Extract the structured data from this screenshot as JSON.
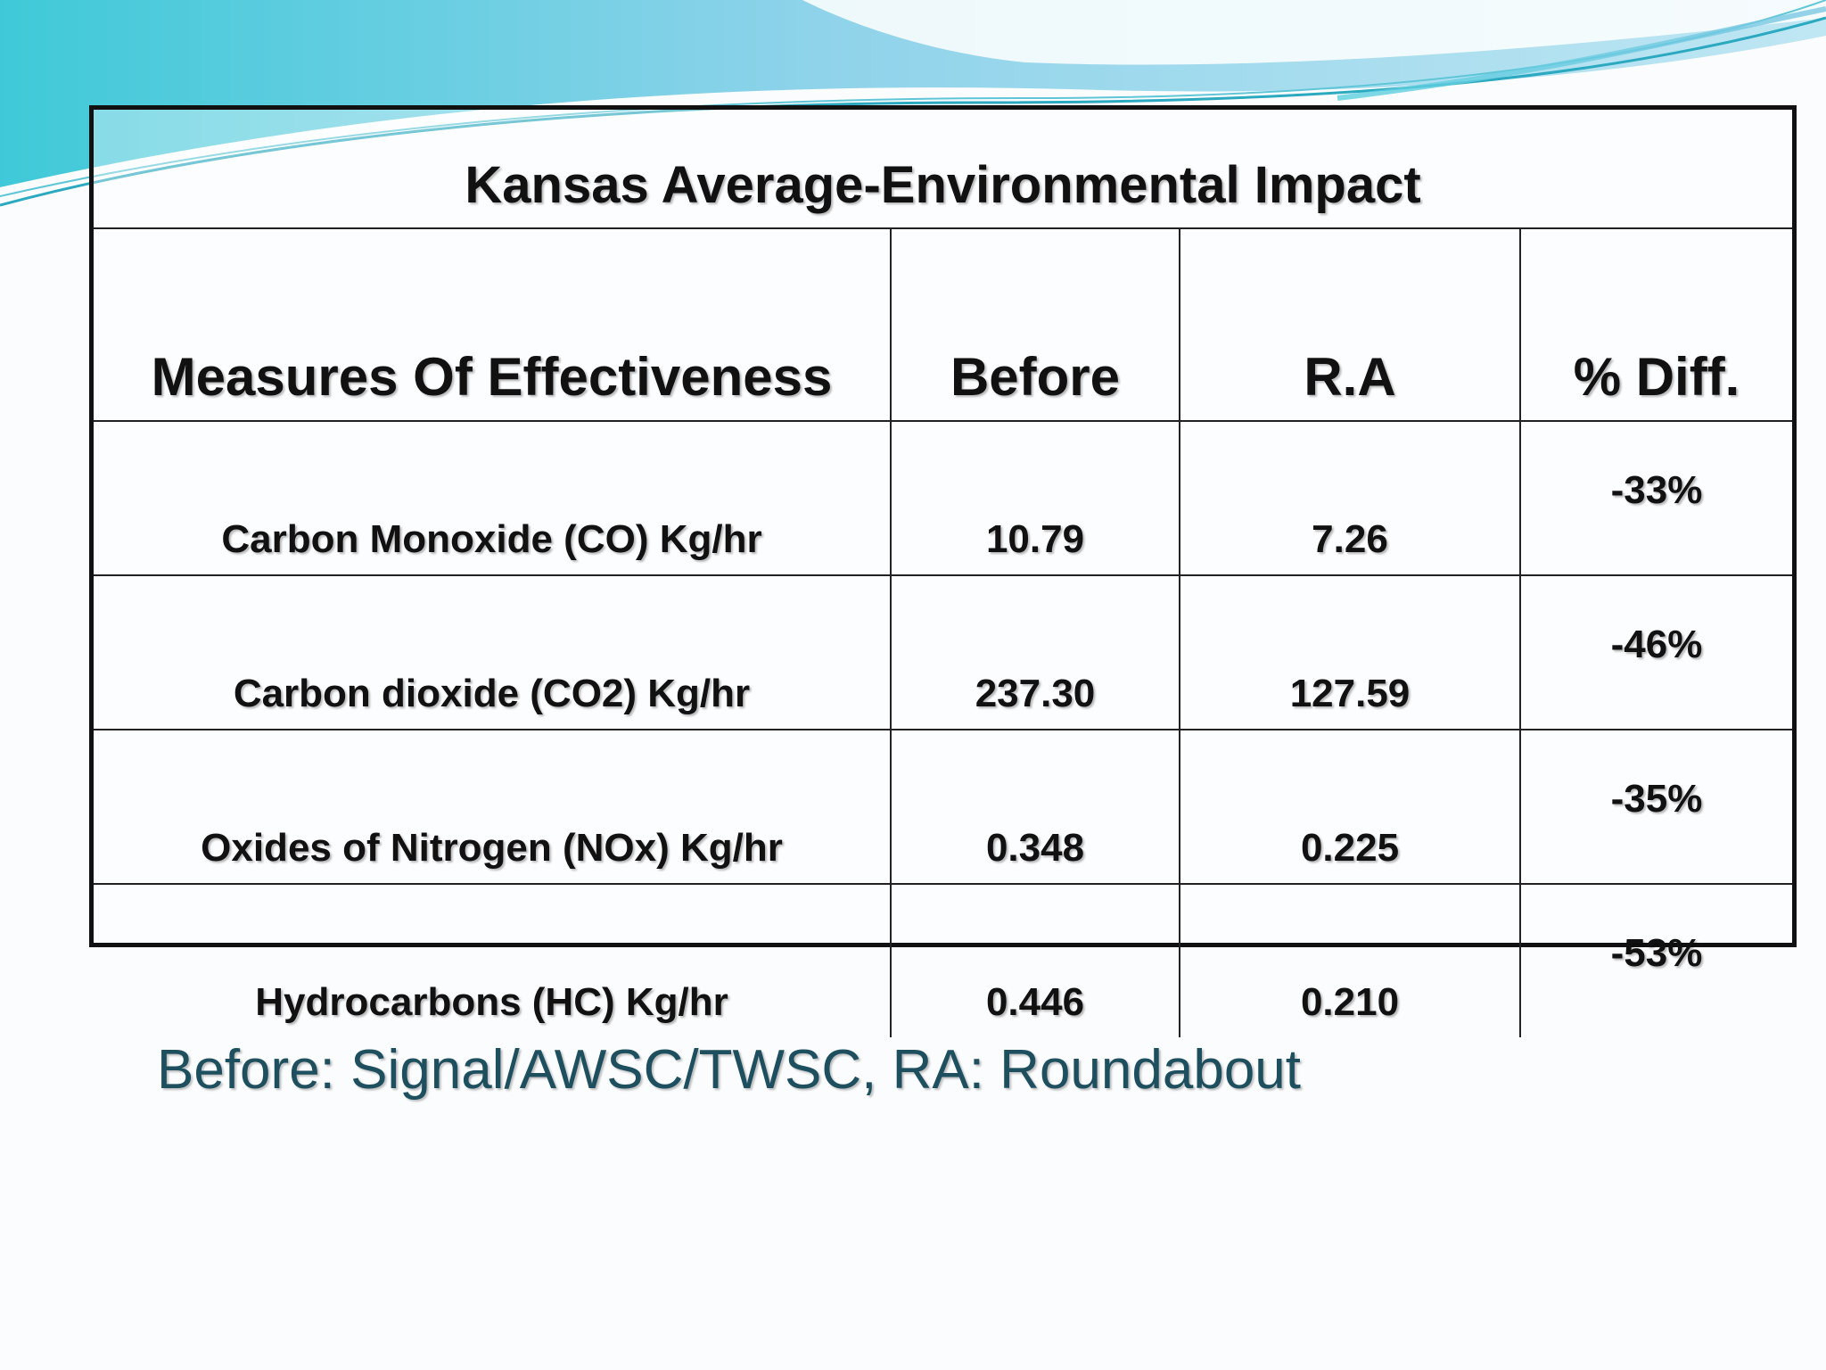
{
  "table": {
    "title": "Kansas Average-Environmental Impact",
    "headers": [
      "Measures Of Effectiveness",
      "Before",
      "R.A",
      "% Diff."
    ],
    "rows": [
      [
        "Carbon Monoxide (CO) Kg/hr",
        "10.79",
        "7.26",
        "-33%"
      ],
      [
        "Carbon dioxide (CO2) Kg/hr",
        "237.30",
        "127.59",
        "-46%"
      ],
      [
        "Oxides of Nitrogen (NOx) Kg/hr",
        "0.348",
        "0.225",
        "-35%"
      ],
      [
        "Hydrocarbons (HC) Kg/hr",
        "0.446",
        "0.210",
        "-53%"
      ]
    ]
  },
  "footnote": "Before: Signal/AWSC/TWSC, RA: Roundabout",
  "colors": {
    "banner_light": "#bfe6f3",
    "banner_mid": "#7cc7e3",
    "banner_teal": "#3fc9d8",
    "footnote_text": "#1d4f5f"
  }
}
